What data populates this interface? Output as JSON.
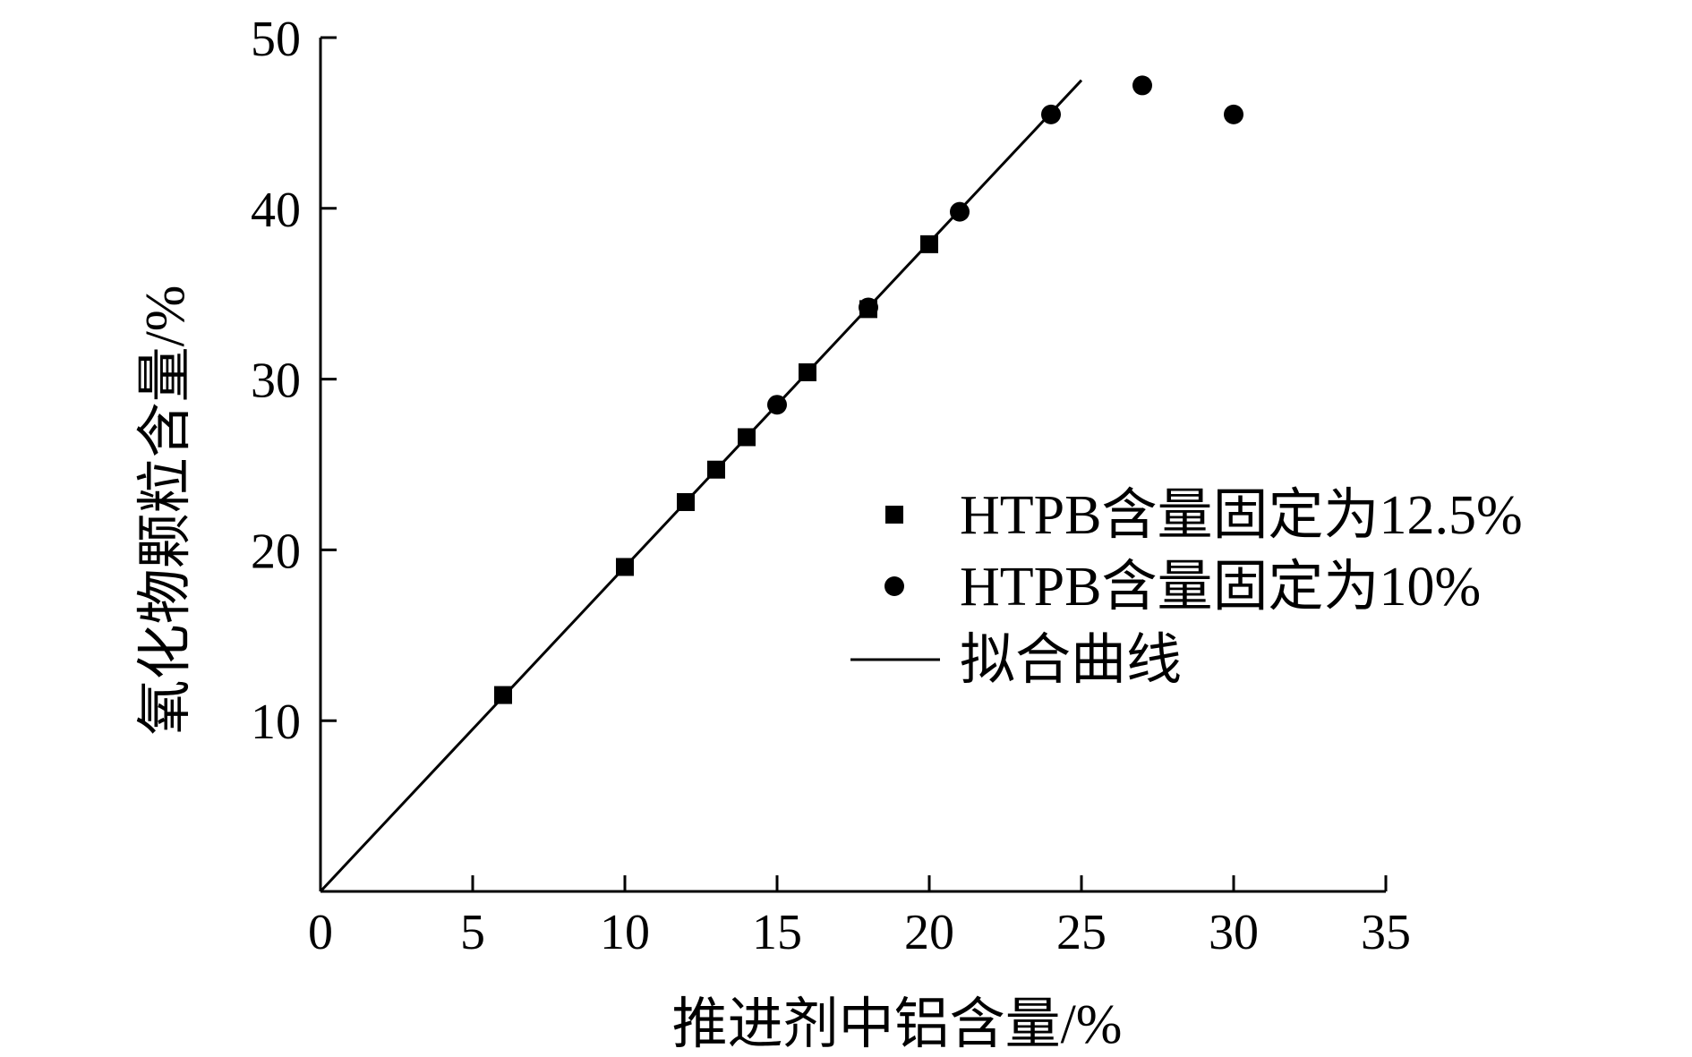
{
  "chart_data": {
    "type": "scatter",
    "xlabel": "推进剂中铝含量/%",
    "ylabel": "氧化物颗粒含量/%",
    "xlim": [
      0,
      35
    ],
    "ylim": [
      0,
      50
    ],
    "xticks": [
      0,
      5,
      10,
      15,
      20,
      25,
      30,
      35
    ],
    "yticks": [
      10,
      20,
      30,
      40,
      50
    ],
    "grid": false,
    "legend_position": "right",
    "series": [
      {
        "name": "HTPB含量固定为12.5%",
        "marker": "square",
        "points": [
          {
            "x": 6,
            "y": 11.5
          },
          {
            "x": 10,
            "y": 19.0
          },
          {
            "x": 12,
            "y": 22.8
          },
          {
            "x": 13,
            "y": 24.7
          },
          {
            "x": 14,
            "y": 26.6
          },
          {
            "x": 16,
            "y": 30.4
          },
          {
            "x": 18,
            "y": 34.1
          },
          {
            "x": 20,
            "y": 37.9
          }
        ]
      },
      {
        "name": "HTPB含量固定为10%",
        "marker": "circle",
        "points": [
          {
            "x": 15,
            "y": 28.5
          },
          {
            "x": 18,
            "y": 34.2
          },
          {
            "x": 21,
            "y": 39.8
          },
          {
            "x": 24,
            "y": 45.5
          },
          {
            "x": 27,
            "y": 47.2
          },
          {
            "x": 30,
            "y": 45.5
          }
        ]
      },
      {
        "name": "拟合曲线",
        "marker": "line",
        "points": [
          {
            "x": 0,
            "y": 0
          },
          {
            "x": 25,
            "y": 47.5
          }
        ]
      }
    ]
  },
  "colors": {
    "ink": "#000000",
    "background": "#ffffff"
  }
}
